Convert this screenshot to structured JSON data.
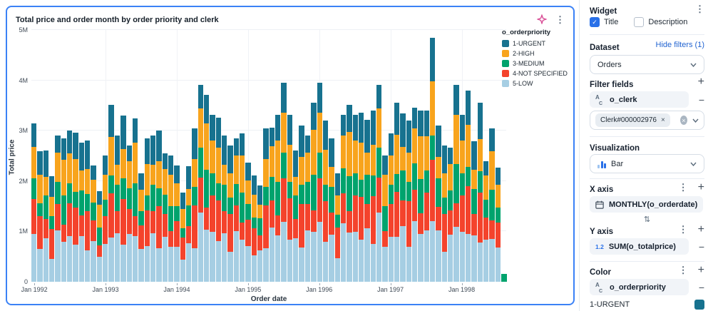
{
  "card": {
    "title": "Total price and order month by order priority and clerk",
    "kebab_glyph": "⋮"
  },
  "chart_data": {
    "type": "bar",
    "stacked": true,
    "title": "Total price and order month by order priority and clerk",
    "xlabel": "Order date",
    "ylabel": "Total price",
    "units": "millions",
    "ymax": 5,
    "ylim": [
      0,
      5000000
    ],
    "grid": true,
    "legend_position": "right",
    "legend_title": "o_orderpriority",
    "y_ticks": [
      "0",
      "1M",
      "2M",
      "3M",
      "4M",
      "5M"
    ],
    "x_ticks": [
      "Jan 1992",
      "Jan 1993",
      "Jan 1994",
      "Jan 1995",
      "Jan 1996",
      "Jan 1997",
      "Jan 1998"
    ],
    "months": [
      "Jan 1992",
      "Feb 1992",
      "Mar 1992",
      "Apr 1992",
      "May 1992",
      "Jun 1992",
      "Jul 1992",
      "Aug 1992",
      "Sep 1992",
      "Oct 1992",
      "Nov 1992",
      "Dec 1992",
      "Jan 1993",
      "Feb 1993",
      "Mar 1993",
      "Apr 1993",
      "May 1993",
      "Jun 1993",
      "Jul 1993",
      "Aug 1993",
      "Sep 1993",
      "Oct 1993",
      "Nov 1993",
      "Dec 1993",
      "Jan 1994",
      "Feb 1994",
      "Mar 1994",
      "Apr 1994",
      "May 1994",
      "Jun 1994",
      "Jul 1994",
      "Aug 1994",
      "Sep 1994",
      "Oct 1994",
      "Nov 1994",
      "Dec 1994",
      "Jan 1995",
      "Feb 1995",
      "Mar 1995",
      "Apr 1995",
      "May 1995",
      "Jun 1995",
      "Jul 1995",
      "Aug 1995",
      "Sep 1995",
      "Oct 1995",
      "Nov 1995",
      "Dec 1995",
      "Jan 1996",
      "Feb 1996",
      "Mar 1996",
      "Apr 1996",
      "May 1996",
      "Jun 1996",
      "Jul 1996",
      "Aug 1996",
      "Sep 1996",
      "Oct 1996",
      "Nov 1996",
      "Dec 1996",
      "Jan 1997",
      "Feb 1997",
      "Mar 1997",
      "Apr 1997",
      "May 1997",
      "Jun 1997",
      "Jul 1997",
      "Aug 1997",
      "Sep 1997",
      "Oct 1997",
      "Nov 1997",
      "Dec 1997",
      "Jan 1998",
      "Feb 1998",
      "Mar 1998",
      "Apr 1998",
      "May 1998",
      "Jun 1998",
      "Jul 1998",
      "Aug 1998"
    ],
    "series": [
      {
        "name": "1-URGENT",
        "color": "#17728f",
        "values": [
          0.47,
          0.47,
          0.52,
          0.42,
          0.35,
          0.43,
          0.45,
          0.53,
          0.55,
          0.56,
          0.28,
          0.27,
          0.38,
          0.63,
          0.58,
          0.66,
          0.32,
          0.49,
          0.32,
          0.51,
          0.58,
          0.6,
          0.31,
          0.38,
          0.35,
          0.32,
          0.46,
          0.61,
          0.47,
          0.56,
          0.5,
          0.59,
          0.58,
          0.54,
          0.34,
          0.44,
          0.35,
          0.38,
          0.38,
          0.61,
          0.37,
          0.5,
          0.59,
          0.59,
          0.52,
          0.62,
          0.35,
          0.53,
          0.59,
          0.58,
          0.57,
          0.43,
          0.4,
          0.53,
          0.5,
          0.6,
          0.64,
          0.68,
          0.47,
          0.38,
          0.44,
          0.64,
          0.67,
          0.64,
          0.41,
          0.51,
          0.51,
          0.87,
          0.62,
          0.54,
          0.32,
          0.59,
          0.5,
          0.68,
          0.56,
          0.71,
          0.29,
          0.46,
          0.34,
          0
        ]
      },
      {
        "name": "2-HIGH",
        "color": "#f8a41d",
        "values": [
          0.63,
          0.57,
          0.36,
          0.38,
          0.58,
          0.71,
          0.6,
          0.65,
          0.39,
          0.5,
          0.46,
          0.45,
          0.5,
          0.77,
          0.41,
          0.59,
          0.54,
          0.81,
          0.43,
          0.63,
          0.41,
          0.54,
          0.51,
          0.63,
          0.46,
          0.39,
          0.32,
          0.55,
          0.78,
          0.93,
          0.66,
          0.72,
          0.41,
          0.49,
          0.57,
          0.74,
          0.47,
          0.46,
          0.27,
          0.55,
          0.61,
          0.83,
          0.79,
          0.73,
          0.36,
          0.56,
          0.58,
          0.89,
          0.79,
          0.7,
          0.4,
          0.39,
          0.66,
          0.88,
          0.66,
          0.74,
          0.45,
          0.61,
          0.78,
          0.63,
          0.59,
          0.78,
          0.47,
          0.58,
          0.69,
          0.85,
          0.68,
          1.07,
          0.43,
          0.49,
          0.53,
          0.98,
          0.66,
          0.84,
          0.39,
          0.64,
          0.48,
          0.76,
          0.45,
          0
        ]
      },
      {
        "name": "3-MEDIUM",
        "color": "#00a36d",
        "values": [
          0.41,
          0.26,
          0.47,
          0.25,
          0.44,
          0.57,
          0.39,
          0.3,
          0.5,
          0.34,
          0.35,
          0.36,
          0.33,
          0.35,
          0.52,
          0.4,
          0.41,
          0.65,
          0.28,
          0.29,
          0.52,
          0.36,
          0.38,
          0.5,
          0.3,
          0.18,
          0.41,
          0.37,
          0.59,
          0.74,
          0.43,
          0.33,
          0.52,
          0.32,
          0.43,
          0.59,
          0.31,
          0.21,
          0.34,
          0.37,
          0.46,
          0.66,
          0.51,
          0.33,
          0.47,
          0.37,
          0.44,
          0.71,
          0.51,
          0.32,
          0.51,
          0.26,
          0.5,
          0.7,
          0.43,
          0.34,
          0.58,
          0.41,
          0.59,
          0.5,
          0.38,
          0.36,
          0.6,
          0.38,
          0.52,
          0.68,
          0.44,
          0.49,
          0.56,
          0.32,
          0.4,
          0.78,
          0.43,
          0.38,
          0.5,
          0.43,
          0.36,
          0.61,
          0.29,
          0.15
        ]
      },
      {
        "name": "4-NOT SPECIFIED",
        "color": "#f4432c",
        "values": [
          0.69,
          0.65,
          0.39,
          0.59,
          0.52,
          0.34,
          0.66,
          0.74,
          0.41,
          0.78,
          0.41,
          0.22,
          0.55,
          0.88,
          0.44,
          0.92,
          0.49,
          0.39,
          0.47,
          0.71,
          0.44,
          0.84,
          0.46,
          0.3,
          0.51,
          0.44,
          0.35,
          0.85,
          0.7,
          0.44,
          0.73,
          0.81,
          0.44,
          0.76,
          0.51,
          0.35,
          0.52,
          0.53,
          0.29,
          0.85,
          0.55,
          0.4,
          0.87,
          0.83,
          0.39,
          0.87,
          0.52,
          0.43,
          0.87,
          0.8,
          0.43,
          0.6,
          0.59,
          0.42,
          0.73,
          0.84,
          0.48,
          0.95,
          0.7,
          0.3,
          0.65,
          0.89,
          0.5,
          0.9,
          0.62,
          0.41,
          0.75,
          1.21,
          0.47,
          0.76,
          0.48,
          0.47,
          0.73,
          0.95,
          0.42,
          0.99,
          0.43,
          0.37,
          0.5,
          0
        ]
      },
      {
        "name": "5-LOW",
        "color": "#a6cee3",
        "values": [
          0.95,
          0.65,
          0.86,
          0.46,
          1.02,
          0.8,
          0.9,
          0.74,
          0.91,
          0.62,
          0.81,
          0.5,
          0.75,
          0.88,
          0.96,
          0.73,
          0.95,
          0.91,
          0.65,
          0.71,
          0.96,
          0.66,
          0.89,
          0.7,
          0.69,
          0.44,
          0.76,
          0.67,
          1.37,
          1.04,
          0.99,
          0.81,
          0.96,
          0.59,
          1.0,
          0.83,
          0.71,
          0.53,
          0.63,
          0.67,
          1.07,
          0.92,
          1.19,
          0.83,
          0.86,
          0.68,
          1.02,
          0.99,
          1.19,
          0.8,
          0.94,
          0.47,
          1.16,
          0.98,
          0.99,
          0.84,
          1.06,
          0.75,
          1.37,
          0.7,
          0.89,
          0.89,
          1.11,
          0.7,
          1.21,
          0.95,
          1.02,
          1.21,
          1.02,
          0.59,
          0.93,
          1.09,
          0.99,
          0.95,
          0.92,
          0.78,
          0.84,
          0.85,
          0.68,
          0
        ]
      }
    ]
  },
  "sidebar": {
    "header": {
      "title": "Widget",
      "kebab_glyph": "⋮"
    },
    "toggles": {
      "title_label": "Title",
      "title_checked": true,
      "check_glyph": "✓",
      "description_label": "Description",
      "description_checked": false
    },
    "dataset": {
      "label": "Dataset",
      "link": "Hide filters (1)",
      "value": "Orders"
    },
    "filter_fields": {
      "label": "Filter fields",
      "plus_glyph": "+",
      "field": "o_clerk",
      "minus_glyph": "−",
      "chip": "Clerk#000002976",
      "chip_close_glyph": "×",
      "clear_glyph": "×"
    },
    "visualization": {
      "label": "Visualization",
      "value": "Bar"
    },
    "x_axis": {
      "label": "X axis",
      "kebab_glyph": "⋮",
      "plus_glyph": "+",
      "field": "MONTHLY(o_orderdate)",
      "minus_glyph": "−"
    },
    "swap_glyph": "⇅",
    "y_axis": {
      "label": "Y axis",
      "kebab_glyph": "⋮",
      "plus_glyph": "+",
      "field": "SUM(o_totalprice)",
      "minus_glyph": "−",
      "numeric_icon_text": "1.2"
    },
    "color": {
      "label": "Color",
      "kebab_glyph": "⋮",
      "plus_glyph": "+",
      "field": "o_orderpriority",
      "minus_glyph": "−",
      "first_value": "1-URGENT",
      "swatch_color": "#17728f"
    },
    "string_icon": {
      "top": "A",
      "bottom": "C"
    }
  },
  "accent": {
    "card_border": "#3b82f6",
    "checkbox": "#2970e8",
    "link": "#2264d1",
    "sparkle": "#d84a94"
  }
}
